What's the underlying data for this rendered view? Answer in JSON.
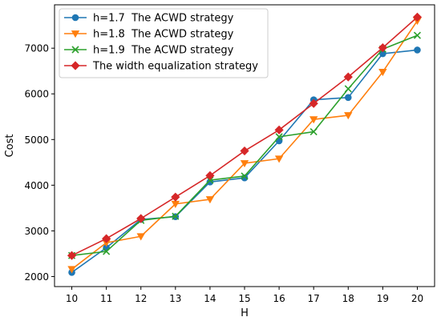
{
  "chart_data": {
    "type": "line",
    "title": "",
    "xlabel": "H",
    "ylabel": "Cost",
    "x": [
      10,
      11,
      12,
      13,
      14,
      15,
      16,
      17,
      18,
      19,
      20
    ],
    "xlim": [
      9.5,
      20.5
    ],
    "ylim": [
      1780,
      7950
    ],
    "yticks": [
      2000,
      3000,
      4000,
      5000,
      6000,
      7000
    ],
    "grid": false,
    "legend_position": "top-left",
    "series": [
      {
        "name": "h=1.7  The ACWD strategy",
        "color": "#1f77b4",
        "marker": "circle",
        "values": [
          2090,
          2630,
          3250,
          3310,
          4070,
          4160,
          4970,
          5870,
          5920,
          6880,
          6960
        ]
      },
      {
        "name": "h=1.8  The ACWD strategy",
        "color": "#ff7f0e",
        "marker": "triangle-down",
        "values": [
          2160,
          2740,
          2880,
          3590,
          3690,
          4480,
          4580,
          5440,
          5530,
          6480,
          7600
        ]
      },
      {
        "name": "h=1.9  The ACWD strategy",
        "color": "#2ca02c",
        "marker": "x",
        "values": [
          2460,
          2550,
          3230,
          3320,
          4110,
          4200,
          5060,
          5170,
          6110,
          6980,
          7280
        ]
      },
      {
        "name": "The width equalization strategy",
        "color": "#d62728",
        "marker": "diamond",
        "values": [
          2460,
          2830,
          3270,
          3740,
          4210,
          4750,
          5210,
          5790,
          6370,
          7010,
          7680
        ]
      }
    ]
  }
}
